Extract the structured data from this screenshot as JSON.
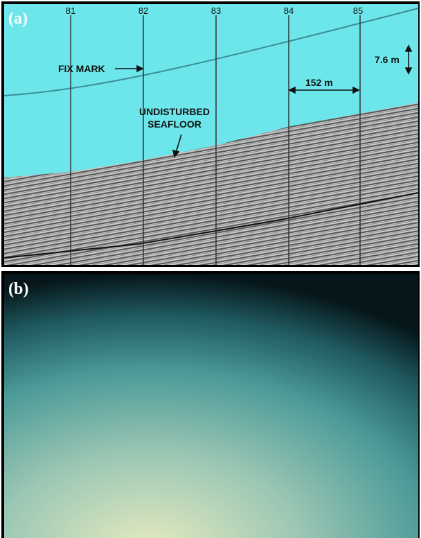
{
  "panel_a": {
    "label": "(a)",
    "fixes": [
      "81",
      "82",
      "83",
      "84",
      "85"
    ],
    "fix_mark": "FIX MARK",
    "seafloor_label": [
      "UNDISTURBED",
      "SEAFLOOR"
    ],
    "vertical_scale": "7.6 m",
    "horizontal_scale": "152 m"
  },
  "panel_b": {
    "label": "(b)"
  }
}
